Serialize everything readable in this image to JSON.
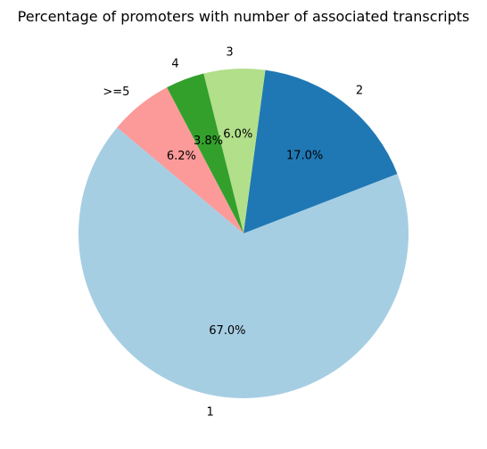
{
  "chart_data": {
    "type": "pie",
    "title": "Percentage of promoters with number of associated transcripts",
    "categories": [
      "1",
      "2",
      "3",
      "4",
      ">=5"
    ],
    "values": [
      67.0,
      17.0,
      6.0,
      3.8,
      6.2
    ],
    "percent_labels": [
      "67.0%",
      "17.0%",
      "6.0%",
      "3.8%",
      "6.2%"
    ],
    "colors": [
      "#a6cee3",
      "#1f78b4",
      "#b2df8a",
      "#33a02c",
      "#fb9a99"
    ],
    "start_angle_deg": 140,
    "direction": "counterclockwise",
    "legend": "none"
  }
}
